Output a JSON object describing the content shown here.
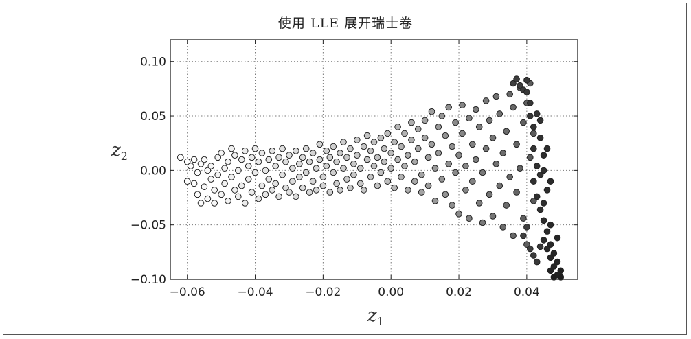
{
  "chart_data": {
    "type": "scatter",
    "title": "使用 LLE 展开瑞士卷",
    "xlabel": "z",
    "xlabel_sub": "1",
    "ylabel": "z",
    "ylabel_sub": "2",
    "xlim": [
      -0.065,
      0.055
    ],
    "ylim": [
      -0.1,
      0.12
    ],
    "x_ticks": [
      -0.06,
      -0.04,
      -0.02,
      0.0,
      0.02,
      0.04
    ],
    "x_tick_labels": [
      "−0.06",
      "−0.04",
      "−0.02",
      "0.00",
      "0.02",
      "0.04"
    ],
    "y_ticks": [
      0.1,
      0.05,
      0.0,
      -0.05,
      -0.1
    ],
    "y_tick_labels": [
      "0.10",
      "0.05",
      "0.00",
      "−0.05",
      "−0.10"
    ],
    "grid": true,
    "grid_style": "dotted",
    "color_scale": [
      "#ffffff",
      "#c8c8c8",
      "#8a8a8a",
      "#555555",
      "#1e1e1e"
    ],
    "marker_edge_color": "#222222",
    "points": [
      [
        -0.062,
        0.012,
        0.0
      ],
      [
        -0.06,
        0.008,
        0.0
      ],
      [
        -0.06,
        -0.01,
        0.01
      ],
      [
        -0.059,
        0.004,
        0.01
      ],
      [
        -0.058,
        -0.012,
        0.01
      ],
      [
        -0.058,
        0.01,
        0.01
      ],
      [
        -0.057,
        -0.002,
        0.02
      ],
      [
        -0.057,
        -0.022,
        0.02
      ],
      [
        -0.056,
        0.006,
        0.02
      ],
      [
        -0.056,
        -0.03,
        0.02
      ],
      [
        -0.055,
        -0.015,
        0.03
      ],
      [
        -0.055,
        0.01,
        0.03
      ],
      [
        -0.054,
        0.0,
        0.03
      ],
      [
        -0.054,
        -0.026,
        0.03
      ],
      [
        -0.053,
        -0.008,
        0.04
      ],
      [
        -0.053,
        0.004,
        0.04
      ],
      [
        -0.052,
        -0.018,
        0.04
      ],
      [
        -0.052,
        -0.03,
        0.04
      ],
      [
        -0.051,
        0.012,
        0.05
      ],
      [
        -0.051,
        -0.004,
        0.05
      ],
      [
        -0.05,
        0.016,
        0.05
      ],
      [
        -0.05,
        -0.022,
        0.05
      ],
      [
        -0.049,
        0.002,
        0.06
      ],
      [
        -0.049,
        -0.012,
        0.06
      ],
      [
        -0.048,
        0.008,
        0.06
      ],
      [
        -0.048,
        -0.028,
        0.06
      ],
      [
        -0.047,
        0.02,
        0.07
      ],
      [
        -0.047,
        -0.006,
        0.07
      ],
      [
        -0.046,
        -0.018,
        0.07
      ],
      [
        -0.046,
        0.014,
        0.07
      ],
      [
        -0.045,
        0.0,
        0.08
      ],
      [
        -0.045,
        -0.024,
        0.08
      ],
      [
        -0.044,
        0.01,
        0.08
      ],
      [
        -0.044,
        -0.014,
        0.08
      ],
      [
        -0.043,
        0.018,
        0.09
      ],
      [
        -0.043,
        -0.03,
        0.09
      ],
      [
        -0.042,
        0.004,
        0.09
      ],
      [
        -0.042,
        -0.008,
        0.09
      ],
      [
        -0.041,
        -0.02,
        0.1
      ],
      [
        -0.041,
        0.012,
        0.1
      ],
      [
        -0.04,
        0.02,
        0.1
      ],
      [
        -0.04,
        -0.002,
        0.1
      ],
      [
        -0.039,
        -0.026,
        0.11
      ],
      [
        -0.039,
        0.008,
        0.11
      ],
      [
        -0.038,
        -0.014,
        0.11
      ],
      [
        -0.038,
        0.016,
        0.11
      ],
      [
        -0.037,
        0.0,
        0.12
      ],
      [
        -0.037,
        -0.022,
        0.12
      ],
      [
        -0.036,
        0.01,
        0.12
      ],
      [
        -0.036,
        -0.008,
        0.12
      ],
      [
        -0.035,
        0.018,
        0.13
      ],
      [
        -0.035,
        -0.018,
        0.13
      ],
      [
        -0.034,
        0.004,
        0.13
      ],
      [
        -0.034,
        -0.012,
        0.13
      ],
      [
        -0.033,
        0.012,
        0.14
      ],
      [
        -0.033,
        -0.024,
        0.14
      ],
      [
        -0.032,
        0.02,
        0.14
      ],
      [
        -0.032,
        -0.004,
        0.14
      ],
      [
        -0.031,
        -0.016,
        0.15
      ],
      [
        -0.031,
        0.008,
        0.15
      ],
      [
        -0.03,
        0.014,
        0.15
      ],
      [
        -0.03,
        -0.02,
        0.15
      ],
      [
        -0.029,
        0.002,
        0.16
      ],
      [
        -0.029,
        -0.01,
        0.16
      ],
      [
        -0.028,
        0.018,
        0.16
      ],
      [
        -0.028,
        -0.024,
        0.16
      ],
      [
        -0.027,
        0.006,
        0.17
      ],
      [
        -0.027,
        -0.006,
        0.17
      ],
      [
        -0.026,
        0.012,
        0.17
      ],
      [
        -0.026,
        -0.016,
        0.17
      ],
      [
        -0.025,
        0.02,
        0.18
      ],
      [
        -0.025,
        -0.002,
        0.18
      ],
      [
        -0.024,
        -0.02,
        0.18
      ],
      [
        -0.024,
        0.008,
        0.18
      ],
      [
        -0.023,
        0.016,
        0.19
      ],
      [
        -0.023,
        -0.01,
        0.19
      ],
      [
        -0.022,
        0.002,
        0.19
      ],
      [
        -0.022,
        -0.018,
        0.19
      ],
      [
        -0.021,
        0.024,
        0.2
      ],
      [
        -0.021,
        0.01,
        0.2
      ],
      [
        -0.02,
        -0.006,
        0.2
      ],
      [
        -0.02,
        -0.014,
        0.2
      ],
      [
        -0.019,
        0.018,
        0.21
      ],
      [
        -0.019,
        0.004,
        0.21
      ],
      [
        -0.018,
        -0.02,
        0.21
      ],
      [
        -0.018,
        0.012,
        0.21
      ],
      [
        -0.017,
        -0.002,
        0.22
      ],
      [
        -0.017,
        0.022,
        0.22
      ],
      [
        -0.016,
        -0.012,
        0.22
      ],
      [
        -0.016,
        0.008,
        0.22
      ],
      [
        -0.015,
        0.016,
        0.23
      ],
      [
        -0.015,
        -0.018,
        0.23
      ],
      [
        -0.014,
        0.002,
        0.23
      ],
      [
        -0.014,
        0.026,
        0.23
      ],
      [
        -0.013,
        -0.008,
        0.24
      ],
      [
        -0.013,
        0.012,
        0.24
      ],
      [
        -0.012,
        0.02,
        0.24
      ],
      [
        -0.012,
        -0.016,
        0.24
      ],
      [
        -0.011,
        0.006,
        0.25
      ],
      [
        -0.011,
        -0.004,
        0.25
      ],
      [
        -0.01,
        0.028,
        0.25
      ],
      [
        -0.01,
        0.014,
        0.25
      ],
      [
        -0.009,
        -0.012,
        0.26
      ],
      [
        -0.009,
        0.002,
        0.26
      ],
      [
        -0.008,
        0.022,
        0.26
      ],
      [
        -0.008,
        -0.018,
        0.26
      ],
      [
        -0.007,
        0.01,
        0.27
      ],
      [
        -0.007,
        0.032,
        0.27
      ],
      [
        -0.006,
        -0.006,
        0.27
      ],
      [
        -0.006,
        0.018,
        0.27
      ],
      [
        -0.005,
        0.004,
        0.28
      ],
      [
        -0.005,
        0.026,
        0.28
      ],
      [
        -0.004,
        -0.014,
        0.28
      ],
      [
        -0.004,
        0.012,
        0.28
      ],
      [
        -0.003,
        0.03,
        0.29
      ],
      [
        -0.003,
        -0.002,
        0.29
      ],
      [
        -0.002,
        0.02,
        0.29
      ],
      [
        -0.002,
        0.008,
        0.29
      ],
      [
        -0.001,
        -0.01,
        0.3
      ],
      [
        -0.001,
        0.034,
        0.3
      ],
      [
        0.0,
        0.016,
        0.3
      ],
      [
        0.0,
        0.002,
        0.3
      ],
      [
        0.001,
        0.026,
        0.32
      ],
      [
        0.001,
        -0.016,
        0.32
      ],
      [
        0.002,
        0.01,
        0.32
      ],
      [
        0.002,
        0.04,
        0.32
      ],
      [
        0.003,
        -0.006,
        0.34
      ],
      [
        0.003,
        0.022,
        0.34
      ],
      [
        0.004,
        0.004,
        0.34
      ],
      [
        0.004,
        0.034,
        0.34
      ],
      [
        0.005,
        -0.018,
        0.36
      ],
      [
        0.005,
        0.014,
        0.36
      ],
      [
        0.006,
        0.044,
        0.36
      ],
      [
        0.006,
        0.028,
        0.36
      ],
      [
        0.007,
        -0.01,
        0.38
      ],
      [
        0.007,
        0.008,
        0.38
      ],
      [
        0.008,
        0.038,
        0.38
      ],
      [
        0.008,
        0.02,
        0.38
      ],
      [
        0.009,
        -0.004,
        0.4
      ],
      [
        0.009,
        -0.02,
        0.4
      ],
      [
        0.01,
        0.046,
        0.4
      ],
      [
        0.01,
        0.03,
        0.4
      ],
      [
        0.011,
        0.012,
        0.42
      ],
      [
        0.011,
        -0.014,
        0.42
      ],
      [
        0.012,
        0.054,
        0.42
      ],
      [
        0.012,
        0.024,
        0.42
      ],
      [
        0.013,
        0.002,
        0.44
      ],
      [
        0.013,
        -0.028,
        0.44
      ],
      [
        0.014,
        0.04,
        0.44
      ],
      [
        0.014,
        0.016,
        0.44
      ],
      [
        0.015,
        -0.008,
        0.46
      ],
      [
        0.015,
        0.05,
        0.46
      ],
      [
        0.016,
        0.032,
        0.46
      ],
      [
        0.016,
        -0.022,
        0.46
      ],
      [
        0.017,
        0.006,
        0.48
      ],
      [
        0.017,
        0.058,
        0.48
      ],
      [
        0.018,
        0.022,
        0.48
      ],
      [
        0.018,
        -0.032,
        0.48
      ],
      [
        0.019,
        0.044,
        0.5
      ],
      [
        0.019,
        -0.002,
        0.5
      ],
      [
        0.02,
        0.014,
        0.5
      ],
      [
        0.02,
        -0.04,
        0.5
      ],
      [
        0.021,
        0.06,
        0.52
      ],
      [
        0.021,
        0.034,
        0.52
      ],
      [
        0.022,
        -0.018,
        0.52
      ],
      [
        0.022,
        0.004,
        0.52
      ],
      [
        0.023,
        0.048,
        0.54
      ],
      [
        0.023,
        -0.044,
        0.54
      ],
      [
        0.024,
        0.024,
        0.54
      ],
      [
        0.024,
        -0.01,
        0.54
      ],
      [
        0.025,
        0.056,
        0.56
      ],
      [
        0.025,
        0.01,
        0.56
      ],
      [
        0.026,
        -0.03,
        0.56
      ],
      [
        0.026,
        0.04,
        0.56
      ],
      [
        0.027,
        -0.002,
        0.58
      ],
      [
        0.027,
        -0.048,
        0.58
      ],
      [
        0.028,
        0.064,
        0.58
      ],
      [
        0.028,
        0.02,
        0.58
      ],
      [
        0.029,
        -0.022,
        0.6
      ],
      [
        0.029,
        0.046,
        0.6
      ],
      [
        0.03,
        0.03,
        0.6
      ],
      [
        0.03,
        -0.042,
        0.6
      ],
      [
        0.031,
        0.006,
        0.62
      ],
      [
        0.031,
        0.068,
        0.62
      ],
      [
        0.032,
        -0.014,
        0.62
      ],
      [
        0.032,
        0.052,
        0.62
      ],
      [
        0.033,
        -0.052,
        0.64
      ],
      [
        0.033,
        0.016,
        0.64
      ],
      [
        0.034,
        0.036,
        0.64
      ],
      [
        0.034,
        -0.032,
        0.64
      ],
      [
        0.035,
        0.07,
        0.66
      ],
      [
        0.035,
        -0.006,
        0.66
      ],
      [
        0.036,
        0.058,
        0.66
      ],
      [
        0.036,
        -0.06,
        0.66
      ],
      [
        0.037,
        0.024,
        0.68
      ],
      [
        0.037,
        -0.02,
        0.68
      ],
      [
        0.038,
        0.076,
        0.68
      ],
      [
        0.038,
        0.002,
        0.68
      ],
      [
        0.039,
        -0.044,
        0.7
      ],
      [
        0.039,
        0.044,
        0.7
      ],
      [
        0.04,
        0.062,
        0.7
      ],
      [
        0.04,
        -0.068,
        0.7
      ],
      [
        0.041,
        0.012,
        0.72
      ],
      [
        0.041,
        0.08,
        0.72
      ],
      [
        0.042,
        -0.028,
        0.72
      ],
      [
        0.042,
        0.034,
        0.72
      ],
      [
        0.036,
        0.08,
        0.85
      ],
      [
        0.037,
        0.084,
        0.86
      ],
      [
        0.038,
        0.078,
        0.86
      ],
      [
        0.039,
        0.074,
        0.87
      ],
      [
        0.04,
        0.083,
        0.88
      ],
      [
        0.04,
        0.072,
        0.88
      ],
      [
        0.041,
        0.062,
        0.89
      ],
      [
        0.041,
        0.05,
        0.89
      ],
      [
        0.042,
        0.04,
        0.9
      ],
      [
        0.043,
        0.052,
        0.9
      ],
      [
        0.042,
        0.02,
        0.9
      ],
      [
        0.043,
        0.004,
        0.91
      ],
      [
        0.042,
        -0.01,
        0.91
      ],
      [
        0.043,
        -0.024,
        0.92
      ],
      [
        0.044,
        -0.036,
        0.92
      ],
      [
        0.044,
        0.03,
        0.92
      ],
      [
        0.045,
        0.014,
        0.93
      ],
      [
        0.045,
        -0.046,
        0.93
      ],
      [
        0.046,
        -0.056,
        0.94
      ],
      [
        0.045,
        -0.064,
        0.94
      ],
      [
        0.046,
        -0.072,
        0.95
      ],
      [
        0.047,
        -0.068,
        0.95
      ],
      [
        0.047,
        -0.08,
        0.96
      ],
      [
        0.048,
        -0.076,
        0.96
      ],
      [
        0.048,
        -0.088,
        0.97
      ],
      [
        0.049,
        -0.084,
        0.97
      ],
      [
        0.047,
        -0.092,
        0.98
      ],
      [
        0.049,
        -0.096,
        0.98
      ],
      [
        0.05,
        -0.092,
        0.99
      ],
      [
        0.05,
        -0.098,
        1.0
      ],
      [
        0.048,
        -0.098,
        1.0
      ],
      [
        0.046,
        -0.018,
        0.93
      ],
      [
        0.044,
        -0.004,
        0.91
      ],
      [
        0.044,
        0.046,
        0.9
      ],
      [
        0.045,
        -0.03,
        0.93
      ],
      [
        0.047,
        -0.01,
        0.94
      ],
      [
        0.047,
        -0.05,
        0.95
      ],
      [
        0.049,
        -0.062,
        0.97
      ],
      [
        0.039,
        -0.06,
        0.85
      ],
      [
        0.04,
        -0.052,
        0.85
      ],
      [
        0.041,
        -0.072,
        0.86
      ],
      [
        0.042,
        -0.078,
        0.87
      ],
      [
        0.043,
        -0.084,
        0.88
      ],
      [
        0.044,
        -0.07,
        0.89
      ],
      [
        0.045,
        0.0,
        0.92
      ],
      [
        0.046,
        0.02,
        0.93
      ]
    ]
  }
}
